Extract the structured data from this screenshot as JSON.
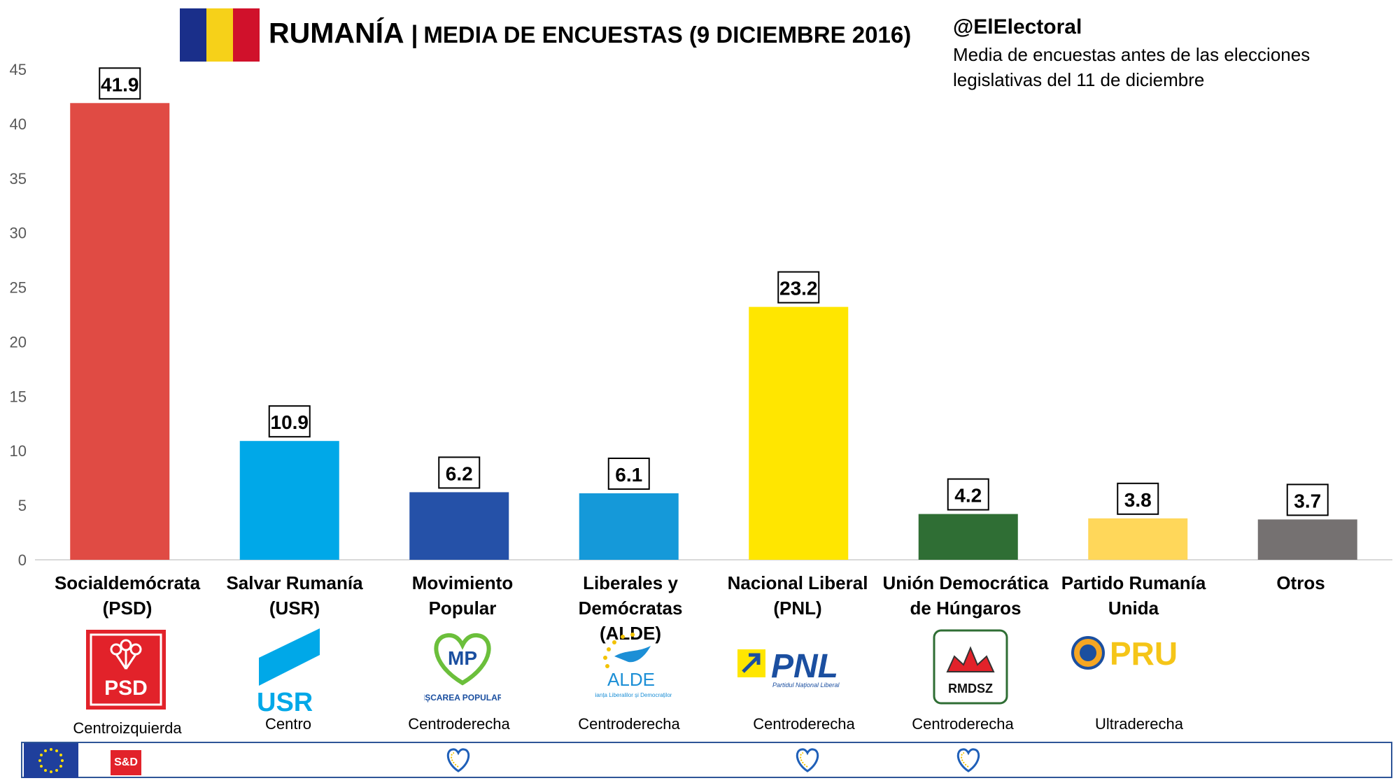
{
  "header": {
    "title_main": "RUMANÍA",
    "title_sep": "|",
    "title_sub": "MEDIA DE ENCUESTAS (9 DICIEMBRE 2016)",
    "handle": "@ElElectoral",
    "subtitle": "Media de encuestas antes de las elecciones legislativas del 11 de diciembre",
    "flag_colors": [
      "#1a2f8a",
      "#f6d119",
      "#d0112b"
    ]
  },
  "chart_data": {
    "type": "bar",
    "categories": [
      "Socialdemócrata (PSD)",
      "Salvar Rumanía (USR)",
      "Movimiento Popular",
      "Liberales y Demócratas (ALDE)",
      "Nacional Liberal (PNL)",
      "Unión Democrática de Húngaros",
      "Partido Rumanía Unida",
      "Otros"
    ],
    "values": [
      41.9,
      10.9,
      6.2,
      6.1,
      23.2,
      4.2,
      3.8,
      3.7
    ],
    "colors": [
      "#e04b44",
      "#00a8e8",
      "#2551a8",
      "#1599d9",
      "#ffe600",
      "#2f6e34",
      "#ffd75a",
      "#757171"
    ],
    "yticks": [
      0,
      5,
      10,
      15,
      20,
      25,
      30,
      35,
      40,
      45
    ],
    "ylim": [
      0,
      45
    ],
    "title": "",
    "xlabel": "",
    "ylabel": "",
    "data_labels": [
      "41.9",
      "10.9",
      "6.2",
      "6.1",
      "23.2",
      "4.2",
      "3.8",
      "3.7"
    ],
    "grid": false
  },
  "parties": [
    {
      "name_line1": "Socialdemócrata",
      "name_line2": "(PSD)",
      "ideology": "Centroizquierda",
      "logo_text": "PSD",
      "logo_icon": "psd-rose-logo"
    },
    {
      "name_line1": "Salvar Rumanía",
      "name_line2": "(USR)",
      "ideology": "Centro",
      "logo_text": "USR",
      "logo_icon": "usr-logo"
    },
    {
      "name_line1": "Movimiento",
      "name_line2": "Popular",
      "ideology": "Centroderecha",
      "logo_text": "MP",
      "logo_sub": "MIȘCAREA POPULARĂ",
      "logo_icon": "mp-heart-logo"
    },
    {
      "name_line1": "Liberales y",
      "name_line2": "Demócratas (ALDE)",
      "ideology": "Centroderecha",
      "logo_text": "ALDE",
      "logo_sub": "Alianța Liberalilor și Democraților",
      "logo_icon": "alde-bird-logo"
    },
    {
      "name_line1": "Nacional Liberal",
      "name_line2": "(PNL)",
      "ideology": "Centroderecha",
      "logo_text": "PNL",
      "logo_sub": "Partidul Național Liberal",
      "logo_icon": "pnl-arrow-logo"
    },
    {
      "name_line1": "Unión Democrática",
      "name_line2": "de Húngaros",
      "ideology": "Centroderecha",
      "logo_text": "RMDSZ",
      "logo_icon": "rmdsz-tulip-logo"
    },
    {
      "name_line1": "Partido Rumanía",
      "name_line2": "Unida",
      "ideology": "Ultraderecha",
      "logo_text": "PRU",
      "logo_icon": "pru-crest-logo"
    },
    {
      "name_line1": "Otros",
      "name_line2": "",
      "ideology": "",
      "logo_icon": ""
    }
  ],
  "groups": {
    "sd_label": "S&D",
    "eu_flag_color": "#1f3f9c",
    "epp_heart_parties": [
      2,
      4,
      5
    ]
  }
}
